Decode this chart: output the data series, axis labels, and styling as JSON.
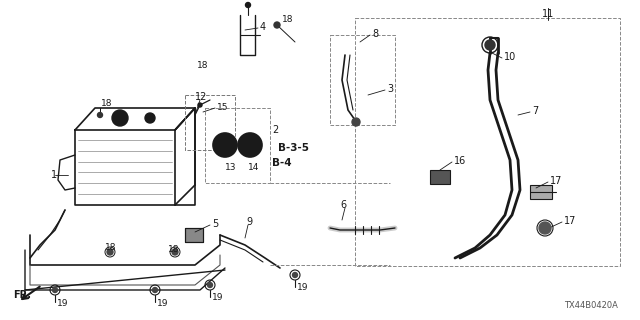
{
  "bg_color": "#ffffff",
  "line_color": "#1a1a1a",
  "diagram_code": "TX44B0420A",
  "fig_w": 6.4,
  "fig_h": 3.2,
  "dpi": 100
}
